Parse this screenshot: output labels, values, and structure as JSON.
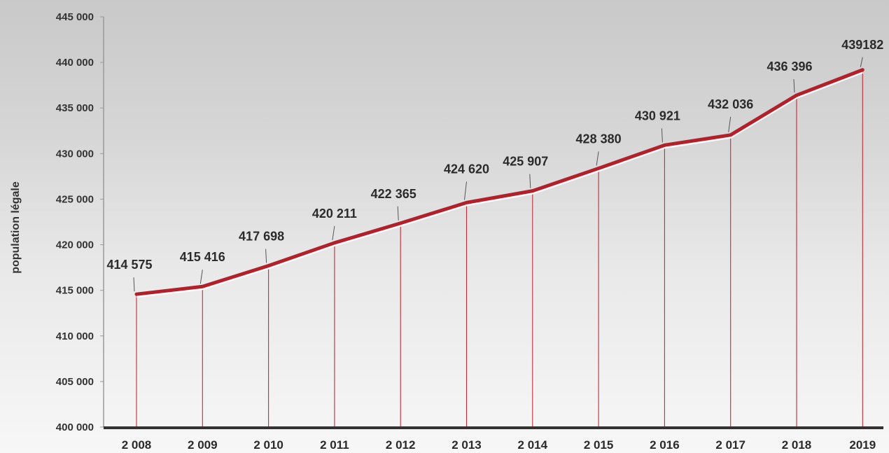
{
  "chart_data": {
    "type": "line",
    "title": "",
    "xlabel": "",
    "ylabel": "population légale",
    "categories": [
      "2 008",
      "2 009",
      "2 010",
      "2 011",
      "2 012",
      "2 013",
      "2 014",
      "2 015",
      "2 016",
      "2 017",
      "2 018",
      "2019"
    ],
    "values": [
      414575,
      415416,
      417698,
      420211,
      422365,
      424620,
      425907,
      428380,
      430921,
      432036,
      436396,
      439182
    ],
    "data_labels": [
      "414 575",
      "415 416",
      "417 698",
      "420 211",
      "422 365",
      "424 620",
      "425 907",
      "428 380",
      "430 921",
      "432 036",
      "436 396",
      "439182"
    ],
    "ylim": [
      400000,
      445000
    ],
    "yticks": [
      400000,
      405000,
      410000,
      415000,
      420000,
      425000,
      430000,
      435000,
      440000,
      445000
    ],
    "ytick_labels": [
      "400 000",
      "405 000",
      "410 000",
      "415 000",
      "420 000",
      "425 000",
      "430 000",
      "435 000",
      "440 000",
      "445 000"
    ],
    "grid": false,
    "colors": {
      "line": "#b3202a",
      "line_highlight": "#ffffff",
      "drop_lines": "#c42a34",
      "axis": "#333333",
      "text": "#2b2b2b"
    }
  }
}
